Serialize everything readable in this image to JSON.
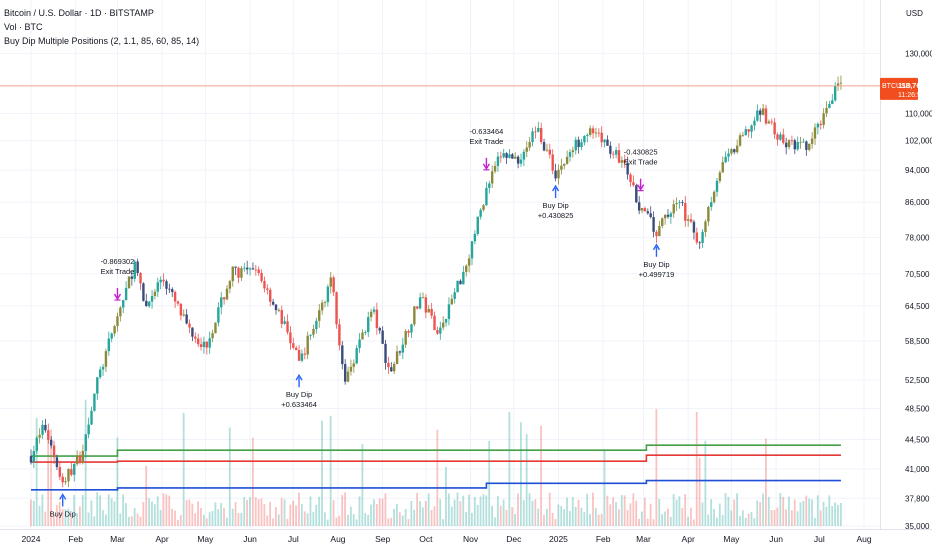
{
  "legend": {
    "title": "Bitcoin / U.S. Dollar · 1D · BITSTAMP",
    "vol": "Vol · BTC",
    "strategy": "Buy Dip Multiple Positions (2, 1.1, 85, 60, 85, 14)"
  },
  "currency": "USD",
  "price_tag": {
    "symbol": "BTCUSD",
    "price": "118,764",
    "timer": "11:26:52"
  },
  "colors": {
    "bull": "#26a69a",
    "bear": "#ef5350",
    "candle_dark": "#3b4b7a",
    "candle_olive": "#8a8a3a",
    "green_line": "#43a047",
    "red_line": "#e53935",
    "blue_line": "#1e4fd6",
    "buy_arrow": "#2962ff",
    "exit_arrow": "#c51fd1",
    "price_line": "#f5a38f",
    "tag_bg": "#f24d1e"
  },
  "chart_data": {
    "type": "candlestick",
    "y_scale": "log",
    "ylim": [
      35000,
      145000
    ],
    "y_ticks": [
      "130,000",
      "110,000",
      "102,000",
      "94,000",
      "86,000",
      "78,000",
      "70,500",
      "64,500",
      "58,500",
      "52,500",
      "48,500",
      "44,500",
      "41,000",
      "37,800",
      "35,000"
    ],
    "x_ticks": [
      "2024",
      "Feb",
      "Mar",
      "Apr",
      "May",
      "Jun",
      "Jul",
      "Aug",
      "Sep",
      "Oct",
      "Nov",
      "Dec",
      "2025",
      "Feb",
      "Mar",
      "Apr",
      "May",
      "Jun",
      "Jul",
      "Aug"
    ],
    "price_path": [
      [
        "2024-01-01",
        42500
      ],
      [
        "2024-01-10",
        46500
      ],
      [
        "2024-01-23",
        39500
      ],
      [
        "2024-02-05",
        42700
      ],
      [
        "2024-02-15",
        51500
      ],
      [
        "2024-02-28",
        61000
      ],
      [
        "2024-03-13",
        72500
      ],
      [
        "2024-03-20",
        64000
      ],
      [
        "2024-04-01",
        70000
      ],
      [
        "2024-04-17",
        61500
      ],
      [
        "2024-05-01",
        57500
      ],
      [
        "2024-05-20",
        71000
      ],
      [
        "2024-06-07",
        70500
      ],
      [
        "2024-06-25",
        61000
      ],
      [
        "2024-07-05",
        55000
      ],
      [
        "2024-07-28",
        69500
      ],
      [
        "2024-08-05",
        52000
      ],
      [
        "2024-08-25",
        64000
      ],
      [
        "2024-09-06",
        53500
      ],
      [
        "2024-09-27",
        66000
      ],
      [
        "2024-10-10",
        60000
      ],
      [
        "2024-10-29",
        72500
      ],
      [
        "2024-11-12",
        89000
      ],
      [
        "2024-11-22",
        98000
      ],
      [
        "2024-12-05",
        97000
      ],
      [
        "2024-12-17",
        106000
      ],
      [
        "2024-12-30",
        93000
      ],
      [
        "2025-01-20",
        105000
      ],
      [
        "2025-01-31",
        102000
      ],
      [
        "2025-02-15",
        96000
      ],
      [
        "2025-02-25",
        86000
      ],
      [
        "2025-03-10",
        79000
      ],
      [
        "2025-03-25",
        87000
      ],
      [
        "2025-04-08",
        76500
      ],
      [
        "2025-04-22",
        93500
      ],
      [
        "2025-05-09",
        103000
      ],
      [
        "2025-05-22",
        111000
      ],
      [
        "2025-06-05",
        101500
      ],
      [
        "2025-06-23",
        100000
      ],
      [
        "2025-07-01",
        107000
      ],
      [
        "2025-07-10",
        116000
      ],
      [
        "2025-07-14",
        121000
      ],
      [
        "2025-07-16",
        118764
      ]
    ],
    "horizontal_levels": [
      {
        "name": "green",
        "segments": [
          [
            "2024-01-01",
            42500
          ],
          [
            "2024-03-01",
            43200
          ],
          [
            "2025-03-03",
            43800
          ]
        ]
      },
      {
        "name": "red",
        "segments": [
          [
            "2024-01-01",
            41800
          ],
          [
            "2024-03-01",
            41900
          ],
          [
            "2025-03-03",
            42600
          ]
        ]
      },
      {
        "name": "blue",
        "segments": [
          [
            "2024-01-01",
            38700
          ],
          [
            "2024-03-01",
            38900
          ],
          [
            "2024-11-12",
            39400
          ],
          [
            "2025-03-03",
            39700
          ]
        ]
      }
    ],
    "signals": [
      {
        "kind": "buy",
        "date": "2024-01-23",
        "price": 39500,
        "lines": [
          "Buy Dip"
        ]
      },
      {
        "kind": "exit",
        "date": "2024-03-01",
        "price": 62000,
        "lines": [
          "-0.869302",
          "Exit Trade"
        ]
      },
      {
        "kind": "buy",
        "date": "2024-07-05",
        "price": 55000,
        "lines": [
          "Buy Dip",
          "+0.633464"
        ]
      },
      {
        "kind": "exit",
        "date": "2024-11-12",
        "price": 89000,
        "lines": [
          "-0.633464",
          "Exit Trade"
        ]
      },
      {
        "kind": "buy",
        "date": "2024-12-30",
        "price": 93000,
        "lines": [
          "Buy Dip",
          "+0.430825"
        ]
      },
      {
        "kind": "exit",
        "date": "2025-02-27",
        "price": 84000,
        "lines": [
          "-0.430825",
          "Exit Trade"
        ]
      },
      {
        "kind": "buy",
        "date": "2025-03-10",
        "price": 79000,
        "lines": [
          "Buy Dip",
          "+0.499719"
        ]
      }
    ]
  }
}
